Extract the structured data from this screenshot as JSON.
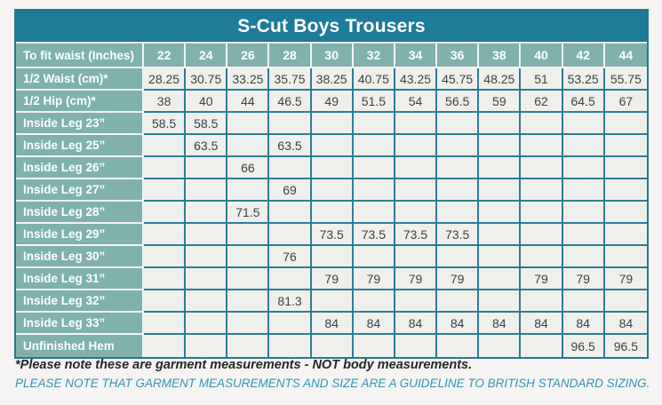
{
  "chart_data": {
    "type": "table",
    "title": "S-Cut Boys Trousers",
    "header_label": "To fit waist (Inches)",
    "columns": [
      "22",
      "24",
      "26",
      "28",
      "30",
      "32",
      "34",
      "36",
      "38",
      "40",
      "42",
      "44"
    ],
    "rows": [
      {
        "label": "1/2 Waist (cm)*",
        "values": [
          "28.25",
          "30.75",
          "33.25",
          "35.75",
          "38.25",
          "40.75",
          "43.25",
          "45.75",
          "48.25",
          "51",
          "53.25",
          "55.75"
        ]
      },
      {
        "label": "1/2 Hip (cm)*",
        "values": [
          "38",
          "40",
          "44",
          "46.5",
          "49",
          "51.5",
          "54",
          "56.5",
          "59",
          "62",
          "64.5",
          "67"
        ]
      },
      {
        "label": "Inside Leg 23”",
        "values": [
          "58.5",
          "58.5",
          "",
          "",
          "",
          "",
          "",
          "",
          "",
          "",
          "",
          ""
        ]
      },
      {
        "label": "Inside Leg 25”",
        "values": [
          "",
          "63.5",
          "",
          "63.5",
          "",
          "",
          "",
          "",
          "",
          "",
          "",
          ""
        ]
      },
      {
        "label": "Inside Leg 26”",
        "values": [
          "",
          "",
          "66",
          "",
          "",
          "",
          "",
          "",
          "",
          "",
          "",
          ""
        ]
      },
      {
        "label": "Inside Leg 27”",
        "values": [
          "",
          "",
          "",
          "69",
          "",
          "",
          "",
          "",
          "",
          "",
          "",
          ""
        ]
      },
      {
        "label": "Inside Leg 28”",
        "values": [
          "",
          "",
          "71.5",
          "",
          "",
          "",
          "",
          "",
          "",
          "",
          "",
          ""
        ]
      },
      {
        "label": "Inside Leg 29”",
        "values": [
          "",
          "",
          "",
          "",
          "73.5",
          "73.5",
          "73.5",
          "73.5",
          "",
          "",
          "",
          ""
        ]
      },
      {
        "label": "Inside Leg 30”",
        "values": [
          "",
          "",
          "",
          "76",
          "",
          "",
          "",
          "",
          "",
          "",
          "",
          ""
        ]
      },
      {
        "label": "Inside Leg 31”",
        "values": [
          "",
          "",
          "",
          "",
          "79",
          "79",
          "79",
          "79",
          "",
          "79",
          "79",
          "79"
        ]
      },
      {
        "label": "Inside Leg 32”",
        "values": [
          "",
          "",
          "",
          "81.3",
          "",
          "",
          "",
          "",
          "",
          "",
          "",
          ""
        ]
      },
      {
        "label": "Inside Leg 33”",
        "values": [
          "",
          "",
          "",
          "",
          "84",
          "84",
          "84",
          "84",
          "84",
          "84",
          "84",
          "84"
        ]
      },
      {
        "label": "Unfinished Hem",
        "values": [
          "",
          "",
          "",
          "",
          "",
          "",
          "",
          "",
          "",
          "",
          "96.5",
          "96.5"
        ]
      }
    ]
  },
  "footnotes": {
    "primary": "*Please note these are garment measurements - NOT body measurements.",
    "secondary": "PLEASE NOTE THAT GARMENT MEASUREMENTS AND SIZE ARE A GUIDELINE TO BRITISH STANDARD SIZING."
  },
  "colors": {
    "page_background": "#f5f4f2",
    "title_background": "#1e7b99",
    "header_cell_background": "#80b1ad",
    "data_cell_background": "#efefec",
    "teal_grid": "#2d7e97",
    "light_grid": "#f3f3f0",
    "outer_border": "#26798f",
    "header_text": "#ffffff",
    "data_text": "#3f4040",
    "note_primary_text": "#262626",
    "note_secondary_text": "#2f96b4"
  }
}
